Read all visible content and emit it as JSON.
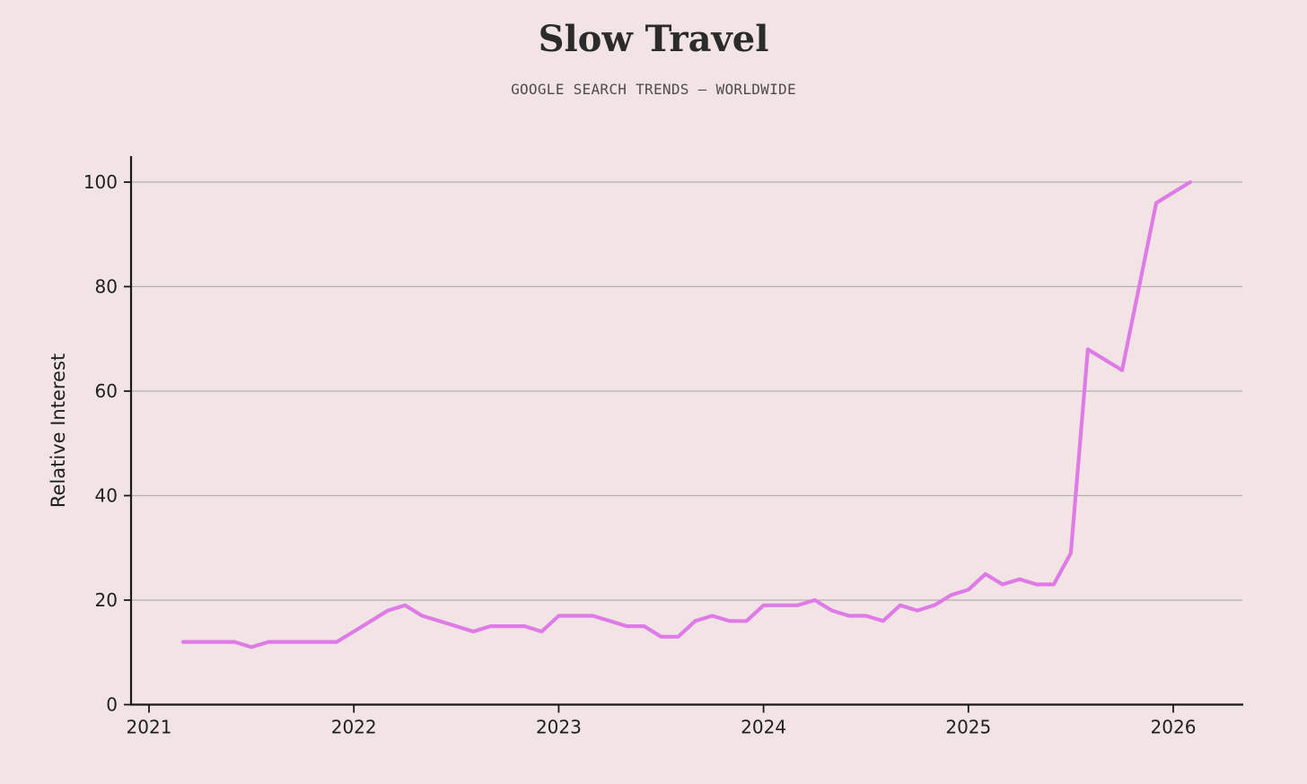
{
  "page": {
    "background": "#f2e4e4"
  },
  "header": {
    "title": "Slow Travel",
    "subtitle": "GOOGLE SEARCH TRENDS — WORLDWIDE"
  },
  "chart_data": {
    "type": "line",
    "title": "Slow Travel",
    "subtitle": "GOOGLE SEARCH TRENDS — WORLDWIDE",
    "xlabel": "",
    "ylabel": "Relative Interest",
    "legend": "none",
    "grid": "horizontal",
    "ylim": [
      0,
      105
    ],
    "y_ticks": [
      0,
      20,
      40,
      60,
      80,
      100
    ],
    "x_tick_labels": [
      "2021",
      "2022",
      "2023",
      "2024",
      "2025",
      "2026"
    ],
    "line_color": "#df7be7",
    "grid_color": "#b6aeae",
    "axis_color": "#1a1a1a",
    "x": [
      "2021-03",
      "2021-04",
      "2021-05",
      "2021-06",
      "2021-07",
      "2021-08",
      "2021-09",
      "2021-10",
      "2021-11",
      "2021-12",
      "2022-01",
      "2022-02",
      "2022-03",
      "2022-04",
      "2022-05",
      "2022-06",
      "2022-07",
      "2022-08",
      "2022-09",
      "2022-10",
      "2022-11",
      "2022-12",
      "2023-01",
      "2023-02",
      "2023-03",
      "2023-04",
      "2023-05",
      "2023-06",
      "2023-07",
      "2023-08",
      "2023-09",
      "2023-10",
      "2023-11",
      "2023-12",
      "2024-01",
      "2024-02",
      "2024-03",
      "2024-04",
      "2024-05",
      "2024-06",
      "2024-07",
      "2024-08",
      "2024-09",
      "2024-10",
      "2024-11",
      "2024-12",
      "2025-01",
      "2025-02",
      "2025-03",
      "2025-04",
      "2025-05",
      "2025-06",
      "2025-07",
      "2025-08",
      "2025-09",
      "2025-10",
      "2025-11",
      "2025-12",
      "2026-01",
      "2026-02"
    ],
    "values": [
      12,
      12,
      12,
      12,
      11,
      12,
      12,
      12,
      12,
      12,
      14,
      16,
      18,
      19,
      17,
      16,
      15,
      14,
      15,
      15,
      15,
      14,
      17,
      17,
      17,
      16,
      15,
      15,
      13,
      13,
      16,
      17,
      16,
      16,
      19,
      19,
      19,
      20,
      18,
      17,
      17,
      16,
      19,
      18,
      19,
      21,
      22,
      25,
      23,
      24,
      23,
      23,
      29,
      68,
      66,
      64,
      80,
      96,
      98,
      100
    ]
  }
}
